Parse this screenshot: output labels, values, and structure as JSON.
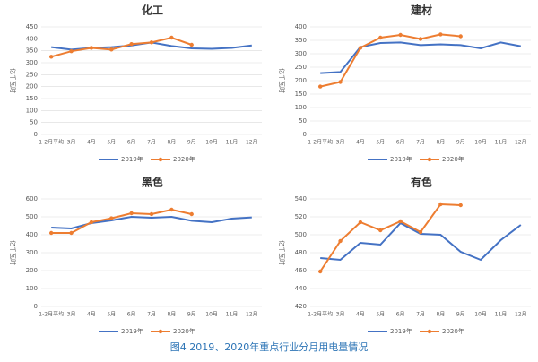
{
  "chart_data": [
    {
      "type": "line",
      "title": "化工",
      "y_label": "亿千瓦时",
      "categories": [
        "1-2月平均",
        "3月",
        "4月",
        "5月",
        "6月",
        "7月",
        "8月",
        "9月",
        "10月",
        "11月",
        "12月"
      ],
      "series": [
        {
          "name": "2019年",
          "color": "#4472c4",
          "values": [
            365,
            355,
            362,
            365,
            372,
            385,
            370,
            360,
            358,
            362,
            372
          ]
        },
        {
          "name": "2020年",
          "color": "#ed7d31",
          "values": [
            325,
            348,
            362,
            355,
            378,
            385,
            405,
            375,
            null,
            null,
            null
          ]
        }
      ],
      "ylim": [
        0,
        450
      ],
      "yticks": [
        0,
        50,
        100,
        150,
        200,
        250,
        300,
        350,
        400,
        450
      ],
      "grid": true
    },
    {
      "type": "line",
      "title": "建材",
      "y_label": "亿千瓦时",
      "categories": [
        "1-2月平均",
        "3月",
        "4月",
        "5月",
        "6月",
        "7月",
        "8月",
        "9月",
        "10月",
        "11月",
        "12月"
      ],
      "series": [
        {
          "name": "2019年",
          "color": "#4472c4",
          "values": [
            228,
            232,
            325,
            340,
            342,
            332,
            335,
            332,
            320,
            342,
            328
          ]
        },
        {
          "name": "2020年",
          "color": "#ed7d31",
          "values": [
            178,
            195,
            322,
            360,
            370,
            355,
            372,
            365,
            null,
            null,
            null
          ]
        }
      ],
      "ylim": [
        0,
        400
      ],
      "yticks": [
        0,
        50,
        100,
        150,
        200,
        250,
        300,
        350,
        400
      ],
      "grid": true
    },
    {
      "type": "line",
      "title": "黑色",
      "y_label": "亿千瓦时",
      "categories": [
        "1-2月平均",
        "3月",
        "4月",
        "5月",
        "6月",
        "7月",
        "8月",
        "9月",
        "10月",
        "11月",
        "12月"
      ],
      "series": [
        {
          "name": "2019年",
          "color": "#4472c4",
          "values": [
            440,
            435,
            465,
            480,
            500,
            495,
            500,
            478,
            470,
            490,
            497
          ]
        },
        {
          "name": "2020年",
          "color": "#ed7d31",
          "values": [
            410,
            410,
            470,
            492,
            520,
            515,
            540,
            515,
            null,
            null,
            null
          ]
        }
      ],
      "ylim": [
        0,
        600
      ],
      "yticks": [
        0,
        100,
        200,
        300,
        400,
        500,
        600
      ],
      "grid": true
    },
    {
      "type": "line",
      "title": "有色",
      "y_label": "亿千瓦时",
      "categories": [
        "1-2月平均",
        "3月",
        "4月",
        "5月",
        "6月",
        "7月",
        "8月",
        "9月",
        "10月",
        "11月",
        "12月"
      ],
      "series": [
        {
          "name": "2019年",
          "color": "#4472c4",
          "values": [
            474,
            472,
            491,
            489,
            513,
            501,
            500,
            481,
            472,
            494,
            511
          ]
        },
        {
          "name": "2020年",
          "color": "#ed7d31",
          "values": [
            459,
            493,
            514,
            505,
            515,
            503,
            534,
            533,
            null,
            null,
            null
          ]
        }
      ],
      "ylim": [
        420,
        540
      ],
      "yticks": [
        420,
        440,
        460,
        480,
        500,
        520,
        540
      ],
      "grid": true
    }
  ],
  "caption": "图4 2019、2020年重点行业分月用电量情况"
}
